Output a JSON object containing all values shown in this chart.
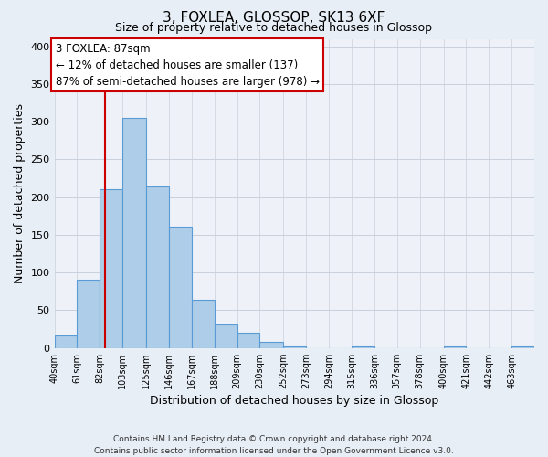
{
  "title": "3, FOXLEA, GLOSSOP, SK13 6XF",
  "subtitle": "Size of property relative to detached houses in Glossop",
  "xlabel": "Distribution of detached houses by size in Glossop",
  "ylabel": "Number of detached properties",
  "bar_heights": [
    17,
    90,
    211,
    305,
    214,
    161,
    64,
    31,
    20,
    8,
    2,
    0,
    0,
    2,
    0,
    0,
    0,
    2,
    0,
    0,
    2
  ],
  "bin_edges": [
    40,
    61,
    82,
    103,
    125,
    146,
    167,
    188,
    209,
    230,
    252,
    273,
    294,
    315,
    336,
    357,
    378,
    400,
    421,
    442,
    463,
    484
  ],
  "tick_labels": [
    "40sqm",
    "61sqm",
    "82sqm",
    "103sqm",
    "125sqm",
    "146sqm",
    "167sqm",
    "188sqm",
    "209sqm",
    "230sqm",
    "252sqm",
    "273sqm",
    "294sqm",
    "315sqm",
    "336sqm",
    "357sqm",
    "378sqm",
    "400sqm",
    "421sqm",
    "442sqm",
    "463sqm"
  ],
  "bar_color": "#aecde8",
  "bar_edge_color": "#5b9bd5",
  "property_line_x": 87,
  "property_line_color": "#cc0000",
  "ylim": [
    0,
    410
  ],
  "yticks": [
    0,
    50,
    100,
    150,
    200,
    250,
    300,
    350,
    400
  ],
  "annotation_title": "3 FOXLEA: 87sqm",
  "annotation_line1": "← 12% of detached houses are smaller (137)",
  "annotation_line2": "87% of semi-detached houses are larger (978) →",
  "footer_line1": "Contains HM Land Registry data © Crown copyright and database right 2024.",
  "footer_line2": "Contains public sector information licensed under the Open Government Licence v3.0.",
  "background_color": "#e8eef6",
  "plot_background_color": "#eef2f8",
  "grid_color": "#c8d0dc"
}
